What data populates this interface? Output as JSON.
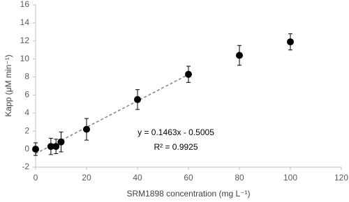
{
  "chart_data": {
    "type": "scatter",
    "xlabel": "SRM1898 concentration (mg L⁻¹)",
    "ylabel": "Kapp (μM min⁻¹)",
    "xlim": [
      0,
      120
    ],
    "xticks": [
      0,
      20,
      40,
      60,
      80,
      100,
      120
    ],
    "ylim": [
      -2,
      16
    ],
    "yticks": [
      -2,
      0,
      2,
      4,
      6,
      8,
      10,
      12,
      14,
      16
    ],
    "series": [
      {
        "color": "#000000",
        "x": [
          0,
          6,
          8,
          10,
          20,
          40,
          60,
          80,
          100
        ],
        "values": [
          0,
          0.3,
          0.3,
          0.8,
          2.2,
          5.5,
          8.3,
          10.4,
          11.9
        ],
        "errors": [
          0.7,
          0.9,
          0.8,
          1.1,
          1.2,
          1.1,
          0.9,
          1.1,
          0.9
        ]
      }
    ],
    "trendline": {
      "color": "#808080",
      "x": [
        0,
        60
      ],
      "y": [
        -0.5005,
        8.2775
      ]
    },
    "annotations": [
      "y = 0.1463x - 0.5005",
      "R² = 0.9925"
    ]
  }
}
